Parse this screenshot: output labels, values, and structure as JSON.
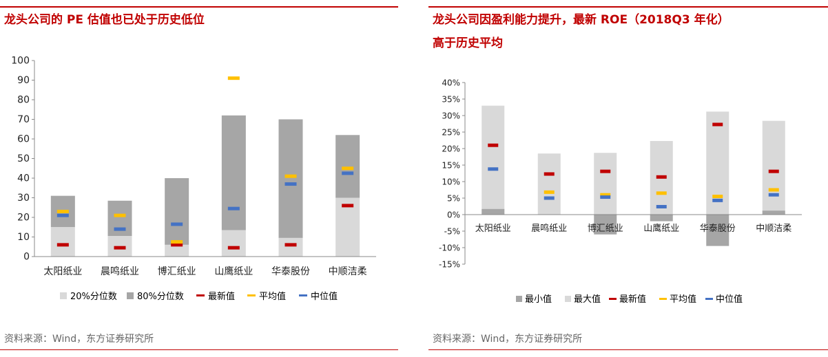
{
  "left": {
    "title": "龙头公司的 PE 估值也已处于历史低位",
    "source": "资料来源：Wind，东方证券研究所",
    "legend": {
      "p20": "20%分位数",
      "p80": "80%分位数",
      "latest": "最新值",
      "avg": "平均值",
      "median": "中位值"
    }
  },
  "right": {
    "title_line1": "龙头公司因盈利能力提升，最新 ROE（2018Q3 年化）",
    "title_line2": "高于历史平均",
    "source": "资料来源：Wind，东方证券研究所",
    "legend": {
      "min": "最小值",
      "max": "最大值",
      "latest": "最新值",
      "avg": "平均值",
      "median": "中位值"
    }
  },
  "colors": {
    "brand_red": "#c00000",
    "light_bar": "#d9d9d9",
    "dark_bar": "#a6a6a6",
    "latest": "#c00000",
    "avg": "#ffc000",
    "median": "#4472c4"
  },
  "chart_data": [
    {
      "type": "bar",
      "title": "龙头公司的 PE 估值也已处于历史低位",
      "categories": [
        "太阳纸业",
        "晨鸣纸业",
        "博汇纸业",
        "山鹰纸业",
        "华泰股份",
        "中顺洁柔"
      ],
      "ylim": [
        0,
        100
      ],
      "yticks": [
        0,
        10,
        20,
        30,
        40,
        50,
        60,
        70,
        80,
        90,
        100
      ],
      "ytick_labels": [
        "0",
        "10",
        "20",
        "30",
        "40",
        "50",
        "60",
        "70",
        "80",
        "90",
        "100"
      ],
      "series": [
        {
          "name": "20%分位数",
          "values": [
            15,
            10.5,
            6,
            13.5,
            9.5,
            30
          ]
        },
        {
          "name": "80%分位数",
          "values": [
            31,
            28.5,
            40,
            72,
            70,
            62
          ]
        },
        {
          "name": "最新值",
          "values": [
            6,
            4.5,
            6,
            4.5,
            6,
            26
          ]
        },
        {
          "name": "平均值",
          "values": [
            23,
            21,
            7.5,
            91,
            41,
            45
          ]
        },
        {
          "name": "中位值",
          "values": [
            21,
            14,
            16.5,
            24.5,
            37,
            42.5
          ]
        }
      ],
      "legend_position": "bottom"
    },
    {
      "type": "bar",
      "title": "龙头公司因盈利能力提升，最新 ROE（2018Q3 年化）高于历史平均",
      "categories": [
        "太阳纸业",
        "晨鸣纸业",
        "博汇纸业",
        "山鹰纸业",
        "华泰股份",
        "中顺洁柔"
      ],
      "ylim": [
        -15,
        40
      ],
      "yticks": [
        -15,
        -10,
        -5,
        0,
        5,
        10,
        15,
        20,
        25,
        30,
        35,
        40
      ],
      "ytick_labels": [
        "-15%",
        "-10%",
        "-5%",
        "0%",
        "5%",
        "10%",
        "15%",
        "20%",
        "25%",
        "30%",
        "35%",
        "40%"
      ],
      "series": [
        {
          "name": "最小值",
          "values": [
            1.7,
            0,
            -6,
            -2,
            -9.5,
            1.2
          ]
        },
        {
          "name": "最大值",
          "values": [
            33,
            18.5,
            18.7,
            22.3,
            31.2,
            28.4
          ]
        },
        {
          "name": "最新值",
          "values": [
            21,
            12.3,
            13.1,
            11.4,
            27.3,
            13.1
          ]
        },
        {
          "name": "平均值",
          "values": [
            null,
            6.8,
            6,
            6.5,
            5.5,
            7.5
          ]
        },
        {
          "name": "中位值",
          "values": [
            13.8,
            5,
            5.3,
            2.4,
            4.3,
            6
          ]
        }
      ],
      "legend_position": "bottom"
    }
  ]
}
